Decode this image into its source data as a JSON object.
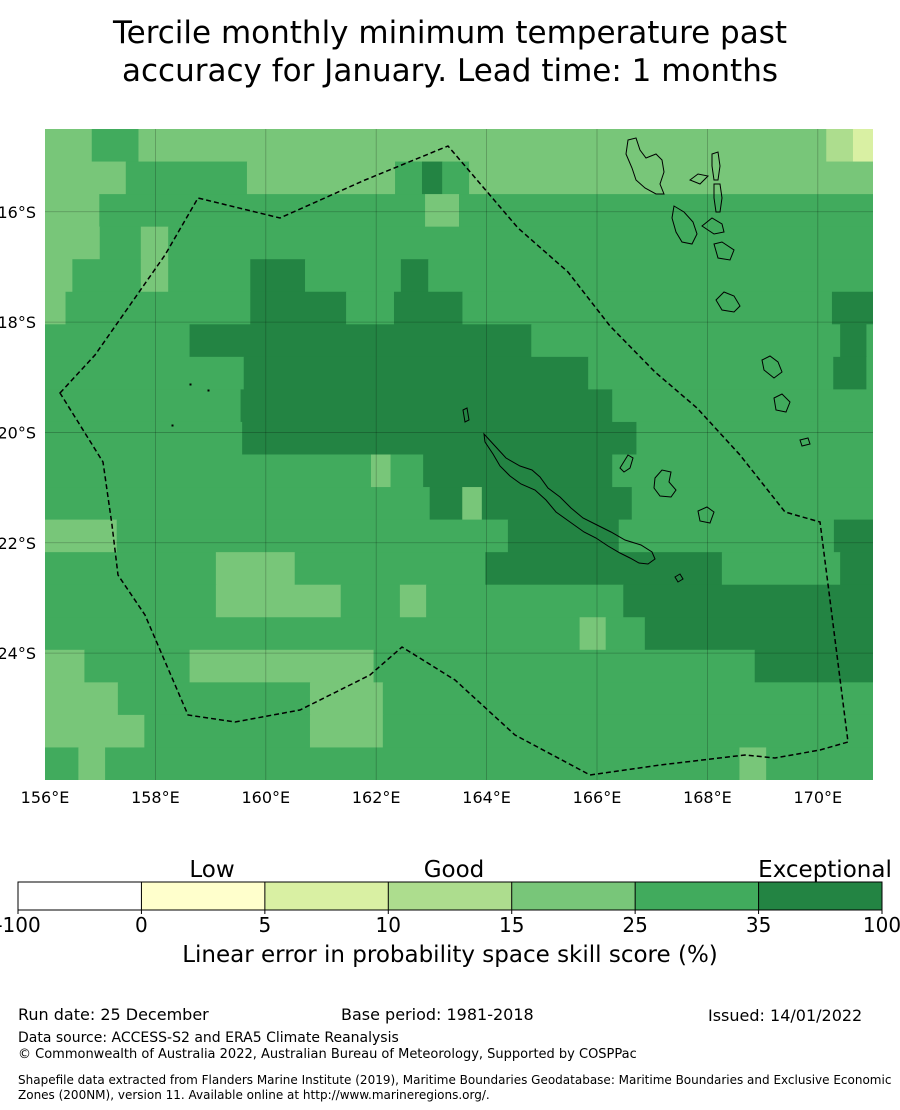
{
  "title": {
    "line1": "Tercile monthly minimum temperature past",
    "line2": "accuracy for January. Lead time: 1 months"
  },
  "map": {
    "lon_min": 156,
    "lon_max": 171,
    "lat_top": -14.5,
    "lat_bottom": -26.3,
    "x_ticks": [
      "156°E",
      "158°E",
      "160°E",
      "162°E",
      "164°E",
      "166°E",
      "168°E",
      "170°E"
    ],
    "y_ticks": [
      "16°S",
      "18°S",
      "20°S",
      "22°S",
      "24°S"
    ],
    "grid": true,
    "cell_colors": {
      "a": "#78c679",
      "b": "#41ab5d",
      "c": "#238443",
      "d": "#addd8e",
      "e": "#d9f0a3"
    },
    "cells": [
      "aaaaaaabbbbbbbaaaaaaaaaaaaaaaaaaaaaaaaaaaaaaaaaaaaaaaaaaaaaaaaaaaaaaaaaaaaaaaaaaaaaaaaaaaaaaaaaaaaaaaaaaaaaaaaaaaaaaaddddeee",
      "aaaaaaaaaaaabbbbbbbbbbbbbbbbbbaaaaaaaaaaaaaaaaaaaaaabbbbcccbbbbaaaaaaaaaaaaaaaaaaaaaaaaaaaaaaaaaaaaaaaaaaaaaaaaaaaaaaaaaaaa",
      "aaaaaaaabbbbbbbbbbbbbbbbbbbbbbbbbbbbbbbbbbbbbbbbbbbbbbbbaaaaabbbbbbbbbbbbbbbbbbbbbbbbbbbbbbbbbbbbbbbbbbbbbbbbbbbbbbbbbbbbb",
      "aaaaaaaabbbbbbaaaabbbbbbbbbbbbbbbbbbbbbbbbbbbbbbbbbbbbbbbbbbbbbbbbbbbbbbbbbbbbbbbbbbbbbbbbbbbbbbbbbbbbbbbbbbbbbbbbbbbbbbb",
      "aaaabbbbbbbbbbaaaabbbbbbbbbbbbccccccccbbbbbbbbbbbbbbccccbbbbbbbbbbbbbbbbbbbbbbbbbbbbbbbbbbbbbbbbbbbbbbbbbbbbbbbbbbbbbbbbb",
      "aaabbbbbbbbbbbbbbbbbbbbbbbbbbbccccccccccccccbbbbbbbccccccccccbbbbbbbbbbbbbbbbbbbbbbbbbbbbbbbbbbbbbbbbbbbbbbbbbbbbbbcccccc",
      "bbbbbbbbbbbbbbbbbbbbbbccccccccccccccccccccccccccccccccccccccccccccccccccccbbbbbbbbbbbbbbbbbbbbbbbbbbbbbbbbbbbbbbbbbbbbbbbccccb",
      "bbbbbbbbbbbbbbbbbbbbbbbbbbbbbbccccccccccccccccccccccccccccccccccccccccccccccccccccbbbbbbbbbbbbbbbbbbbbbbbbbbbbbbbbbbbbbcccccb",
      "bbbbbbbbbbbbbbbbbbbbbbbbbbbbbbcccccccccccccccccccccccccccccccccccccccccccccccccccccccccbbbbbbbbbbbbbbbbbbbbbbbbbbbbbbbbbbbbbbbb",
      "bbbbbbbbbbbbbbbbbbbbbbbbbbbbbbccccccccccccccccccccccccccccccccccccccccccccccccccccccccccccbbbbbbbbbbbbbbbbbbbbbbbbbbbbbbbbbbbb",
      "bbbbbbbbbbbbbbbbbbbbbbbbbbbbbbbbbbbbbbbbbbbbbbbbbbaaabbbbbcccccccccccccccccccccccccccccbbbbbbbbbbbbbbbbbbbbbbbbbbbbbbbbbbbbbbbb",
      "bbbbbbbbbbbbbbbbbbbbbbbbbbbbbbbbbbbbbbbbbbbbbbbbbbbbbbbbbbbcccccaaacccccccccccccccccccccccbbbbbbbbbbbbbbbbbbbbbbbbbbbbbbbbbbbbb",
      "aaaaaaaaaaabbbbbbbbbbbbbbbbbbbbbbbbbbbbbbbbbbbbbbbbbbbbbbbbbbbbbbbbbbbbcccccccccccccccccbbbbbbbbbbbbbbbbbbbbbbbbbbbbbbbbbcccccc",
      "bbbbbbbbbbbbbbbbbbbbbbbbbbaaaaaaaaaaaabbbbbbbbbbbbbbbbbbbbbbbbbbbbbccccccccccccccccccccccccccccccccccccbbbbbbbbbbbbbbbbbbccccc",
      "bbbbbbbbbbbbbbbbbbbbbbbbbbaaaaaaaaaaaaaaaaaaabbbbbbbbbaaaabbbbbbbbbbbbbbbbbbbbbbbbbbbbbbcccccccccccccccccccccccccccccccccccccc",
      "bbbbbbbbbbbbbbbbbbbbbbbbbbbbbbbbbbbbbbbbbbbbbbbbbbbbbbbbbbbbbbbbbbbbbbbbbbbbbbbbbbaaaabbbbbbccccccccccccccccccccccccccccccccccc",
      "aaaaaabbbbbbbbbbbbbbbbaaaaaaaaaaaaaaaaaaaaaaaaaaaabbbbbbbbbbbbbbbbbbbbbbbbbbbbbbbbbbbbbbbbbbbbbbbbbbbbbbbbbbcccccccccccccccccc",
      "aaaaaaaaaaabbbbbbbbbbbbbbbbbbbbbbbbbbbbbaaaaaaaaaaabbbbbbbbbbbbbbbbbbbbbbbbbbbbbbbbbbbbbbbbbbbbbbbbbbbbbbbbbbbbbbbbbbbbbbbbbb",
      "aaaaaaaaaaaaaaabbbbbbbbbbbbbbbbbbbbbbbbbaaaaaaaaaaabbbbbbbbbbbbbbbbbbbbbbbbbbbbbbbbbbbbbbbbbbbbbbbbbbbbbbbbbbbbbbbbbbbbbbbbbb",
      "bbbbbaaaabbbbbbbbbbbbbbbbbbbbbbbbbbbbbbbbbbbbbbbbbbbbbbbbbbbbbbbbbbbbbbbbbbbbbbbbbbbbbbbbbbbbbbbbbbbbbbbaaaabbbbbbbbbbbbbbbb"
    ]
  },
  "colorbar": {
    "category_labels": [
      "Low",
      "Good",
      "Exceptional"
    ],
    "tick_labels": [
      "-100",
      "0",
      "5",
      "10",
      "15",
      "25",
      "35",
      "100"
    ],
    "colors": [
      "#ffffff",
      "#ffffcc",
      "#d9f0a3",
      "#addd8e",
      "#78c679",
      "#41ab5d",
      "#238443"
    ],
    "title": "Linear error in probability space skill score (%)"
  },
  "footer": {
    "run_date": "Run date: 25 December",
    "base_period": "Base period: 1981-2018",
    "issued": "Issued: 14/01/2022",
    "data_source": "Data source: ACCESS-S2 and ERA5 Climate Reanalysis",
    "copyright": "© Commonwealth of Australia 2022, Australian Bureau of Meteorology, Supported by COSPPac",
    "shapefile_line1": "Shapefile data extracted from Flanders Marine Institute (2019), Maritime Boundaries Geodatabase: Maritime Boundaries and Exclusive Economic",
    "shapefile_line2": "Zones (200NM), version 11. Available online at http://www.marineregions.org/."
  }
}
